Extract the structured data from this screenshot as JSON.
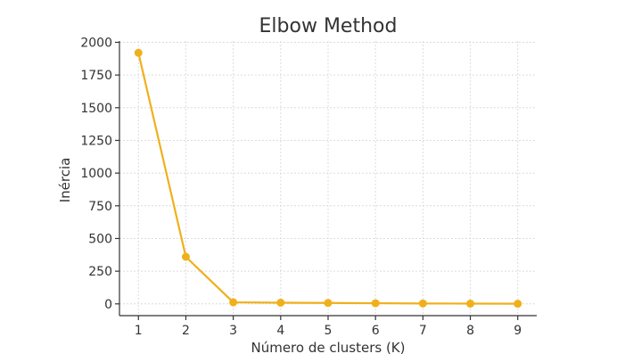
{
  "chart_data": {
    "type": "line",
    "title": "Elbow Method",
    "xlabel": "Número de clusters (K)",
    "ylabel": "Inércia",
    "x": [
      1,
      2,
      3,
      4,
      5,
      6,
      7,
      8,
      9
    ],
    "y": [
      1920,
      360,
      12,
      9,
      7,
      5,
      3,
      2,
      1
    ],
    "xticks": [
      1,
      2,
      3,
      4,
      5,
      6,
      7,
      8,
      9
    ],
    "yticks": [
      0,
      250,
      500,
      750,
      1000,
      1250,
      1500,
      1750,
      2000
    ],
    "xlim": [
      0.6,
      9.4
    ],
    "ylim": [
      -90,
      2010
    ],
    "grid": true,
    "line_color": "#F0B01C",
    "marker": "circle"
  }
}
